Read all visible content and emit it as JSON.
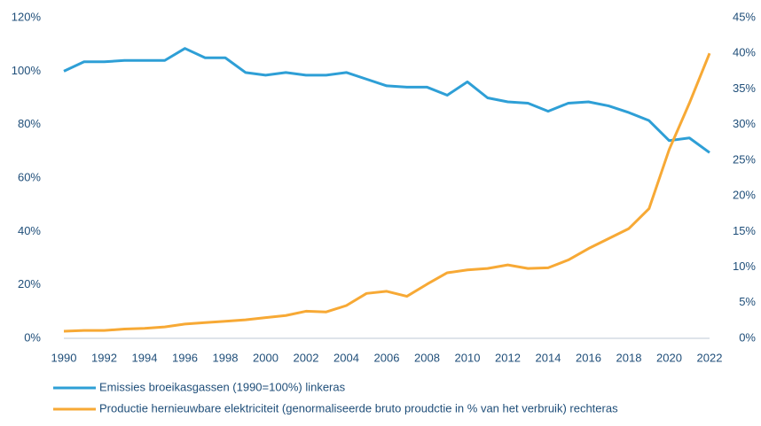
{
  "chart_data": {
    "type": "line",
    "x": [
      1990,
      1991,
      1992,
      1993,
      1994,
      1995,
      1996,
      1997,
      1998,
      1999,
      2000,
      2001,
      2002,
      2003,
      2004,
      2005,
      2006,
      2007,
      2008,
      2009,
      2010,
      2011,
      2012,
      2013,
      2014,
      2015,
      2016,
      2017,
      2018,
      2019,
      2020,
      2021,
      2022
    ],
    "xlim": [
      1990,
      2022
    ],
    "xticks": [
      1990,
      1992,
      1994,
      1996,
      1998,
      2000,
      2002,
      2004,
      2006,
      2008,
      2010,
      2012,
      2014,
      2016,
      2018,
      2020,
      2022
    ],
    "ylim": [
      0,
      120
    ],
    "yticks": [
      {
        "value": 0,
        "label": "0%"
      },
      {
        "value": 20,
        "label": "20%"
      },
      {
        "value": 40,
        "label": "40%"
      },
      {
        "value": 60,
        "label": "60%"
      },
      {
        "value": 80,
        "label": "80%"
      },
      {
        "value": 100,
        "label": "100%"
      },
      {
        "value": 120,
        "label": "120%"
      }
    ],
    "y2lim": [
      0,
      45
    ],
    "y2ticks": [
      {
        "value": 0,
        "label": "0%"
      },
      {
        "value": 5,
        "label": "5%"
      },
      {
        "value": 10,
        "label": "10%"
      },
      {
        "value": 15,
        "label": "15%"
      },
      {
        "value": 20,
        "label": "20%"
      },
      {
        "value": 25,
        "label": "25%"
      },
      {
        "value": 30,
        "label": "30%"
      },
      {
        "value": 35,
        "label": "35%"
      },
      {
        "value": 40,
        "label": "40%"
      },
      {
        "value": 45,
        "label": "45%"
      }
    ],
    "grid": false,
    "series": [
      {
        "name": "Emissies broeikasgassen (1990=100%) linkeras",
        "color": "#2e9fd6",
        "axis": "y",
        "values": [
          100,
          103.5,
          103.5,
          104,
          104,
          104,
          108.5,
          105,
          105,
          99.5,
          98.5,
          99.5,
          98.5,
          98.5,
          99.5,
          97,
          94.5,
          94,
          94,
          91,
          96,
          90,
          88.5,
          88,
          85,
          88,
          88.5,
          87,
          84.5,
          81.5,
          74,
          75,
          69.5
        ]
      },
      {
        "name": "Productie hernieuwbare elektriciteit (genormaliseerde bruto proudctie in % van het verbruik) rechteras",
        "color": "#f7a935",
        "axis": "y2",
        "values": [
          1,
          1.1,
          1.1,
          1.3,
          1.4,
          1.6,
          2,
          2.2,
          2.4,
          2.6,
          2.9,
          3.2,
          3.8,
          3.7,
          4.6,
          6.3,
          6.6,
          5.9,
          7.6,
          9.2,
          9.6,
          9.8,
          10.3,
          9.8,
          9.9,
          11,
          12.6,
          14,
          15.4,
          18.2,
          26.5,
          33,
          40
        ]
      }
    ]
  }
}
